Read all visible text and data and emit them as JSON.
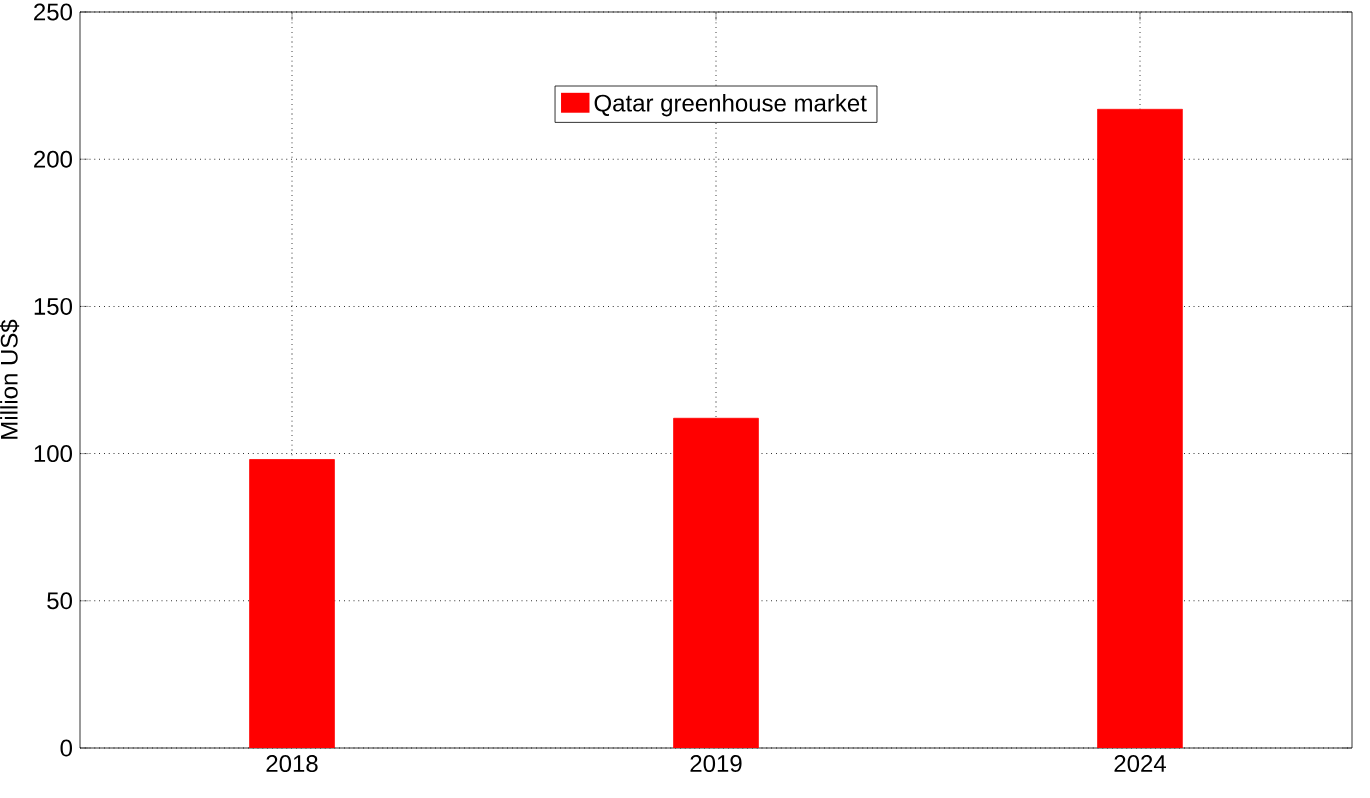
{
  "chart_data": {
    "type": "bar",
    "ylabel": "Million US$",
    "categories": [
      "2018",
      "2019",
      "2024"
    ],
    "series": [
      {
        "name": "Qatar greenhouse market",
        "color": "#ff0000",
        "values": [
          98,
          112,
          217
        ]
      }
    ],
    "ylim": [
      0,
      250
    ],
    "yticks": [
      0,
      50,
      100,
      150,
      200,
      250
    ],
    "grid": true,
    "legend": "top"
  }
}
